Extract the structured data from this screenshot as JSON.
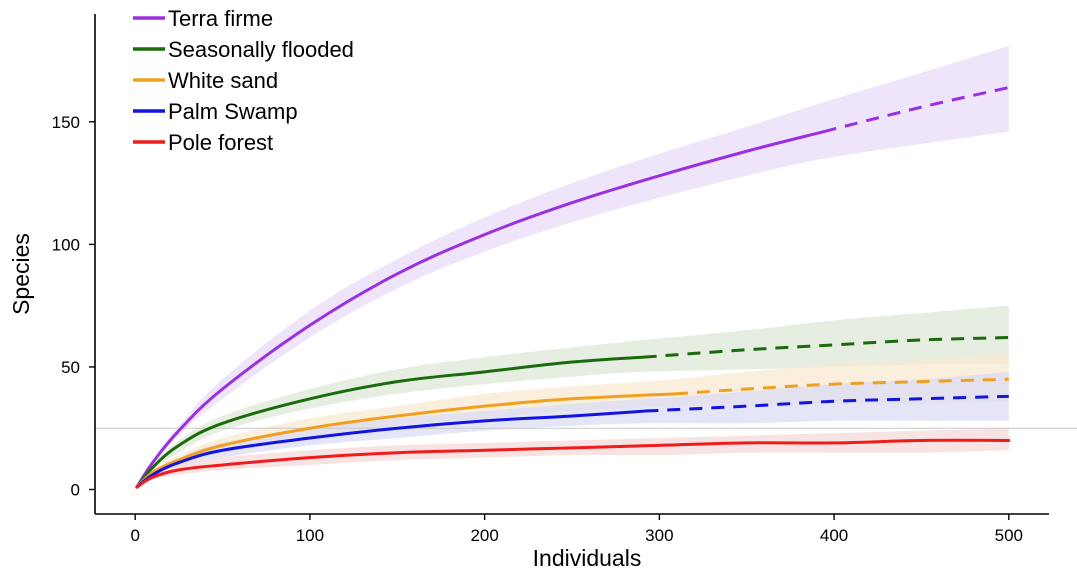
{
  "chart_data": {
    "type": "line",
    "title": "",
    "xlabel": "Individuals",
    "ylabel": "Species",
    "xlim": [
      -23,
      523
    ],
    "ylim": [
      -10,
      194
    ],
    "xticks": [
      0,
      100,
      200,
      300,
      400,
      500
    ],
    "yticks": [
      0,
      50,
      100,
      150
    ],
    "reference_line_y": 25,
    "legend_position": "top-left",
    "series": [
      {
        "name": "Terra firme",
        "color": "#9B30E0",
        "band_color": "#EADCF8",
        "observed_max_x": 394,
        "x": [
          1,
          10,
          25,
          50,
          100,
          150,
          200,
          250,
          300,
          350,
          394,
          450,
          500
        ],
        "y": [
          1,
          11,
          24,
          41,
          67,
          88,
          104,
          117,
          128,
          138,
          146,
          156,
          164
        ],
        "lower": [
          1,
          10,
          22,
          37,
          62,
          82,
          97,
          109,
          119,
          128,
          135,
          141,
          146
        ],
        "upper": [
          1,
          12,
          26,
          45,
          73,
          94,
          111,
          125,
          137,
          148,
          158,
          170,
          181
        ]
      },
      {
        "name": "Seasonally flooded",
        "color": "#1B6B0E",
        "band_color": "#DDE8D8",
        "observed_max_x": 291,
        "x": [
          1,
          10,
          25,
          50,
          100,
          150,
          200,
          250,
          291,
          350,
          400,
          450,
          500
        ],
        "y": [
          1,
          9,
          18,
          27,
          37,
          44,
          48,
          52,
          54,
          57,
          59,
          61,
          62
        ],
        "lower": [
          1,
          8,
          15,
          24,
          33,
          39,
          43,
          46,
          48,
          49,
          50,
          51,
          51
        ],
        "upper": [
          1,
          10,
          20,
          30,
          41,
          49,
          54,
          58,
          61,
          65,
          69,
          72,
          75
        ]
      },
      {
        "name": "White sand",
        "color": "#F0A020",
        "band_color": "#F8E8D0",
        "observed_max_x": 309,
        "x": [
          1,
          10,
          25,
          50,
          100,
          150,
          200,
          250,
          309,
          350,
          400,
          450,
          500
        ],
        "y": [
          1,
          7,
          12,
          18,
          25,
          30,
          34,
          37,
          39,
          41,
          43,
          44,
          45
        ],
        "lower": [
          1,
          6,
          10,
          15,
          21,
          26,
          29,
          32,
          34,
          34,
          35,
          35,
          36
        ],
        "upper": [
          1,
          8,
          14,
          21,
          29,
          34,
          39,
          42,
          45,
          48,
          51,
          53,
          56
        ]
      },
      {
        "name": "Palm Swamp",
        "color": "#1414E0",
        "band_color": "#DCDCF5",
        "observed_max_x": 292,
        "x": [
          1,
          10,
          25,
          50,
          100,
          150,
          200,
          250,
          292,
          350,
          400,
          450,
          500
        ],
        "y": [
          1,
          6,
          11,
          16,
          21,
          25,
          28,
          30,
          32,
          34,
          36,
          37,
          38
        ],
        "lower": [
          1,
          5,
          9,
          13,
          18,
          21,
          24,
          26,
          27,
          27,
          28,
          28,
          28
        ],
        "upper": [
          1,
          7,
          13,
          19,
          25,
          29,
          32,
          35,
          37,
          40,
          43,
          45,
          48
        ]
      },
      {
        "name": "Pole forest",
        "color": "#EE1C1C",
        "band_color": "#F5DADA",
        "observed_max_x": 500,
        "x": [
          1,
          10,
          25,
          50,
          100,
          150,
          200,
          250,
          300,
          350,
          400,
          450,
          500
        ],
        "y": [
          1,
          5,
          8,
          10,
          13,
          15,
          16,
          17,
          18,
          19,
          19,
          20,
          20
        ],
        "lower": [
          1,
          4,
          6,
          8,
          10,
          12,
          13,
          14,
          14,
          15,
          15,
          15,
          16
        ],
        "upper": [
          1,
          6,
          10,
          13,
          16,
          18,
          19,
          20,
          21,
          22,
          23,
          24,
          25
        ]
      }
    ]
  }
}
